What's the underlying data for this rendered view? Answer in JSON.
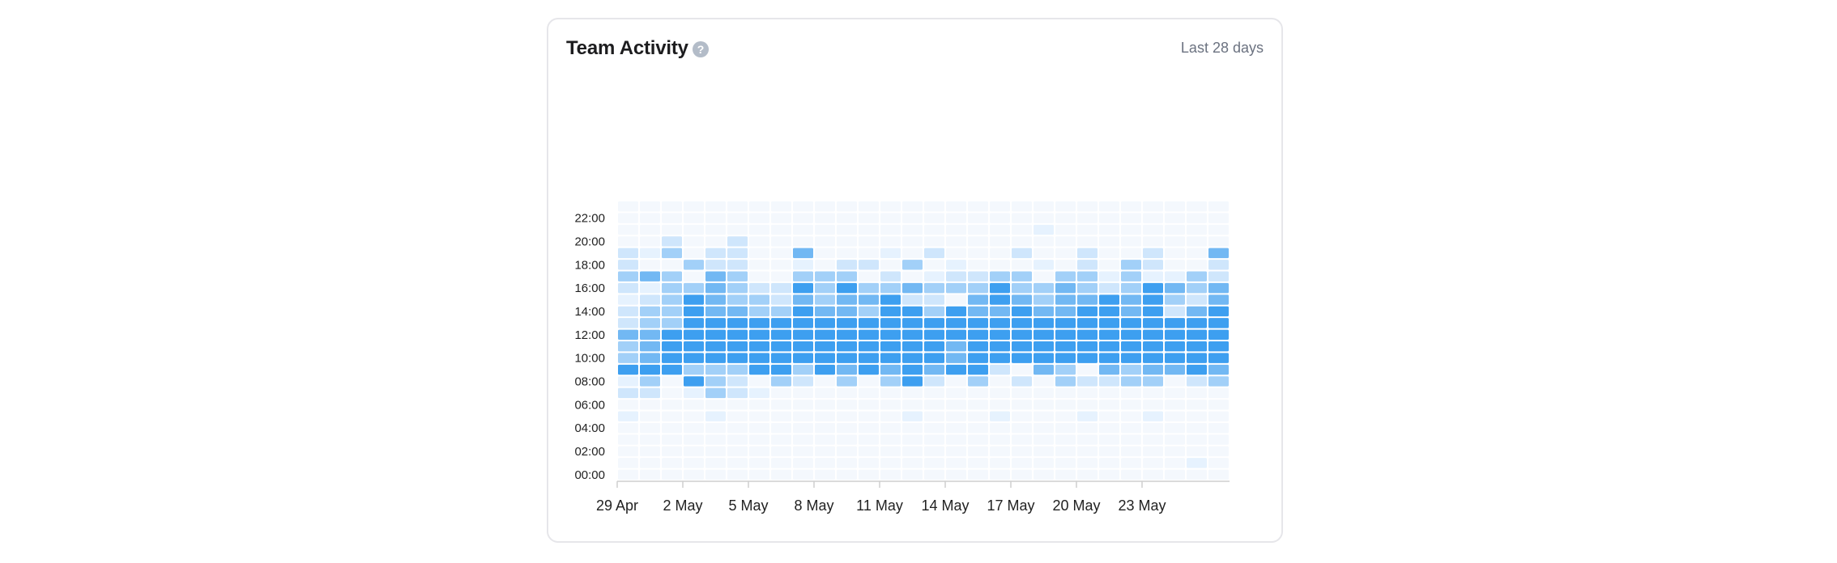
{
  "card": {
    "title": "Team Activity",
    "help_icon": "question-circle-icon",
    "range_label": "Last 28 days"
  },
  "colors": {
    "cell_levels": [
      "#f4f8fd",
      "#e6f2fe",
      "#cfe6fc",
      "#a2d0f8",
      "#72b8f3",
      "#3d9ff0"
    ],
    "axis": "#cfcfcf",
    "tick_text": "#222222"
  },
  "chart_data": {
    "type": "heatmap",
    "title": "",
    "xlabel": "",
    "ylabel": "",
    "x_tick_labels": [
      "29 Apr",
      "2 May",
      "5 May",
      "8 May",
      "11 May",
      "14 May",
      "17 May",
      "20 May",
      "23 May"
    ],
    "y_tick_labels": [
      "00:00",
      "02:00",
      "04:00",
      "06:00",
      "08:00",
      "10:00",
      "12:00",
      "14:00",
      "16:00",
      "18:00",
      "20:00",
      "22:00"
    ],
    "x_dates": [
      "29 Apr",
      "30 Apr",
      "1 May",
      "2 May",
      "3 May",
      "4 May",
      "5 May",
      "6 May",
      "7 May",
      "8 May",
      "9 May",
      "10 May",
      "11 May",
      "12 May",
      "13 May",
      "14 May",
      "15 May",
      "16 May",
      "17 May",
      "18 May",
      "19 May",
      "20 May",
      "21 May",
      "22 May",
      "23 May",
      "24 May",
      "25 May",
      "26 May"
    ],
    "y_hours": [
      "00:00",
      "01:00",
      "02:00",
      "03:00",
      "04:00",
      "05:00",
      "06:00",
      "07:00",
      "08:00",
      "09:00",
      "10:00",
      "11:00",
      "12:00",
      "13:00",
      "14:00",
      "15:00",
      "16:00",
      "17:00",
      "18:00",
      "19:00",
      "20:00",
      "21:00",
      "22:00",
      "23:00"
    ],
    "value_scale": "0 = no activity, 5 = highest activity",
    "values_by_hour_desc": [
      "0000000000000000000000000000",
      "0000000000000000000000000000",
      "0000000000000000000100000000",
      "0020020000000000000000000000",
      "2130220040001020002002002004",
      "2003220010220301000102032002",
      "3430430033302012233033131132",
      "2133432253533433353343235434",
      "1235433243445220454344545324",
      "2335443354435535445445545245",
      "2335555555555555555555555555",
      "4455555555555555555555555555",
      "3455555555555554555555555555",
      "3455555555555554555555555555",
      "5553335535454545520430434454",
      "1305320320303520302032233023",
      "2201321000000000000000000000",
      "0000000000000000000000000000",
      "1000100000000100010001001000",
      "0000000000000000000000000000",
      "0000000000000000000000000000",
      "0000000000000000000000000000",
      "0000000000000000000000000010",
      "0000000000000000000000000000"
    ]
  }
}
